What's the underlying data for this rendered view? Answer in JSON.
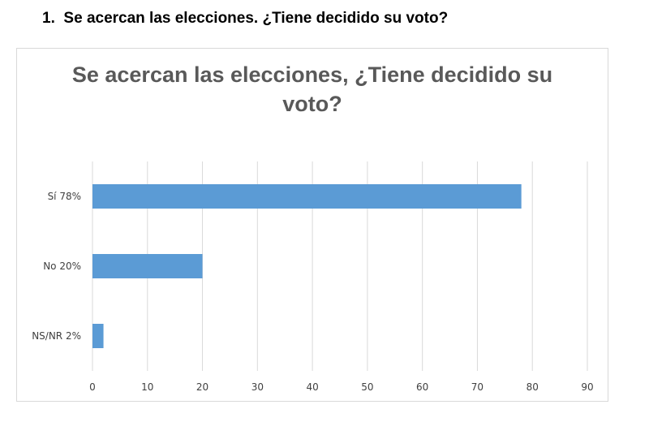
{
  "question": {
    "number": "1.",
    "text": "Se acercan las elecciones. ¿Tiene decidido su voto?"
  },
  "chart_data": {
    "type": "bar",
    "orientation": "horizontal",
    "title_line1": "Se acercan las elecciones, ¿Tiene decidido su",
    "title_line2": "voto?",
    "categories": [
      "Sí  78%",
      "No  20%",
      "NS/NR  2%"
    ],
    "values": [
      78,
      20,
      2
    ],
    "xlim": [
      0,
      90
    ],
    "xticks": [
      0,
      10,
      20,
      30,
      40,
      50,
      60,
      70,
      80,
      90
    ],
    "grid": true,
    "legend": "none",
    "bar_color": "#5b9bd5",
    "grid_color": "#d9d9d9"
  }
}
